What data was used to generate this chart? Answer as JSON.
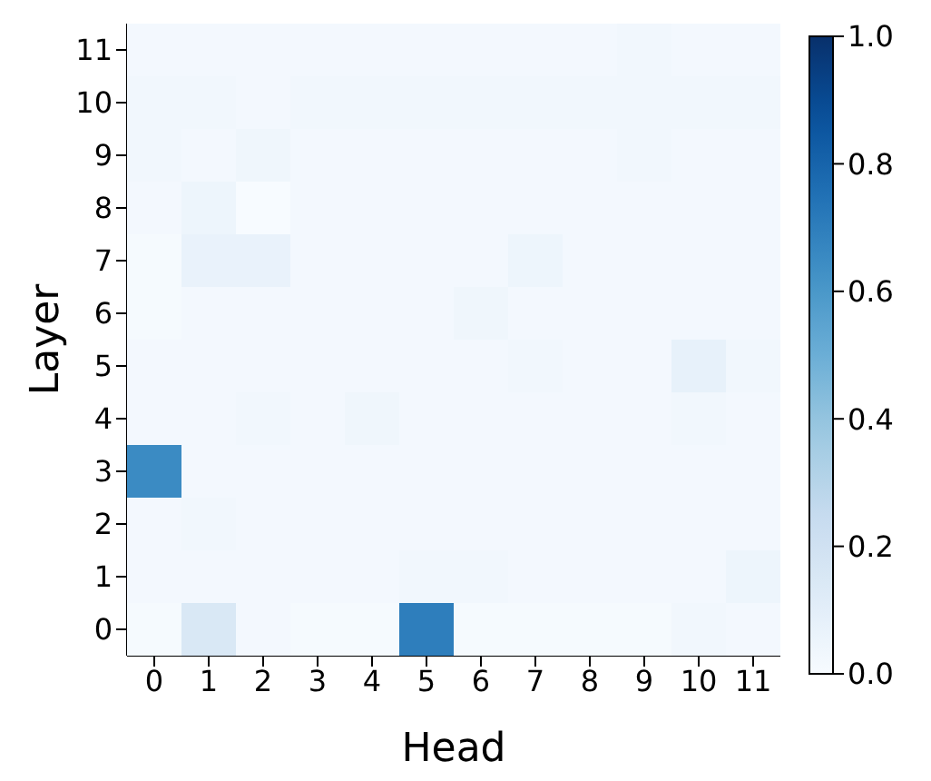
{
  "chart_data": {
    "type": "heatmap",
    "xlabel": "Head",
    "ylabel": "Layer",
    "categories": [
      "0",
      "1",
      "2",
      "3",
      "4",
      "5",
      "6",
      "7",
      "8",
      "9",
      "10",
      "11"
    ],
    "y_categories": [
      "11",
      "10",
      "9",
      "8",
      "7",
      "6",
      "5",
      "4",
      "3",
      "2",
      "1",
      "0"
    ],
    "cells": [
      [
        0.02,
        0.02,
        0.02,
        0.02,
        0.02,
        0.02,
        0.02,
        0.02,
        0.02,
        0.03,
        0.02,
        0.02
      ],
      [
        0.03,
        0.03,
        0.02,
        0.03,
        0.03,
        0.03,
        0.03,
        0.03,
        0.03,
        0.03,
        0.03,
        0.03
      ],
      [
        0.03,
        0.02,
        0.04,
        0.02,
        0.02,
        0.02,
        0.02,
        0.02,
        0.02,
        0.03,
        0.02,
        0.02
      ],
      [
        0.02,
        0.05,
        0.0,
        0.02,
        0.02,
        0.02,
        0.02,
        0.02,
        0.02,
        0.02,
        0.02,
        0.02
      ],
      [
        0.01,
        0.07,
        0.07,
        0.02,
        0.02,
        0.02,
        0.02,
        0.05,
        0.02,
        0.02,
        0.02,
        0.02
      ],
      [
        0.01,
        0.02,
        0.02,
        0.02,
        0.02,
        0.02,
        0.04,
        0.02,
        0.02,
        0.02,
        0.02,
        0.02
      ],
      [
        0.02,
        0.02,
        0.02,
        0.02,
        0.02,
        0.02,
        0.02,
        0.03,
        0.02,
        0.02,
        0.08,
        0.03
      ],
      [
        0.02,
        0.02,
        0.03,
        0.02,
        0.04,
        0.02,
        0.02,
        0.02,
        0.02,
        0.02,
        0.03,
        0.02
      ],
      [
        0.65,
        0.02,
        0.02,
        0.02,
        0.02,
        0.02,
        0.02,
        0.02,
        0.02,
        0.02,
        0.02,
        0.02
      ],
      [
        0.02,
        0.03,
        0.02,
        0.02,
        0.02,
        0.02,
        0.02,
        0.02,
        0.02,
        0.02,
        0.02,
        0.02
      ],
      [
        0.02,
        0.02,
        0.02,
        0.02,
        0.02,
        0.03,
        0.03,
        0.02,
        0.02,
        0.02,
        0.02,
        0.05
      ],
      [
        0.01,
        0.15,
        0.02,
        0.01,
        0.01,
        0.7,
        0.01,
        0.01,
        0.01,
        0.01,
        0.03,
        0.02
      ]
    ],
    "clim": [
      0,
      1
    ],
    "cticks": [
      {
        "value": 0,
        "label": "0.0"
      },
      {
        "value": 0.2,
        "label": "0.2"
      },
      {
        "value": 0.4,
        "label": "0.4"
      },
      {
        "value": 0.6,
        "label": "0.6"
      },
      {
        "value": 0.8,
        "label": "0.8"
      },
      {
        "value": 1,
        "label": "1.0"
      }
    ]
  }
}
